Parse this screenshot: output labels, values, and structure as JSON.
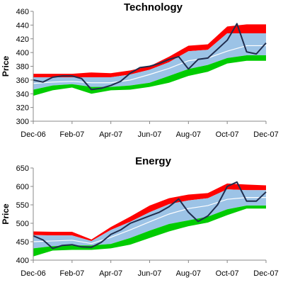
{
  "chart_data": [
    {
      "type": "area",
      "title": "Technology",
      "xlabel": "",
      "ylabel": "Price",
      "ylim": [
        300,
        460
      ],
      "yticks": [
        300,
        320,
        340,
        360,
        380,
        400,
        420,
        440,
        460
      ],
      "xlim": [
        "Dec-06",
        "Dec-07"
      ],
      "xticks": [
        "Dec-06",
        "Feb-07",
        "Apr-07",
        "Jun-07",
        "Aug-07",
        "Oct-07",
        "Dec-07"
      ],
      "grid": false,
      "legend": "none",
      "colors": {
        "upper": "#ff0000",
        "band": "#9cc3e6",
        "lower": "#00cc00",
        "mid": "#ffffff",
        "price": "#1f2d4e"
      },
      "bands": {
        "x": [
          "Dec-06",
          "Jan-07",
          "Feb-07",
          "Mar-07",
          "Apr-07",
          "May-07",
          "Jun-07",
          "Jul-07",
          "Aug-07",
          "Sep-07",
          "Oct-07",
          "Nov-07",
          "Dec-07"
        ],
        "red_top": [
          369,
          369,
          369,
          371,
          370,
          374,
          380,
          394,
          410,
          412,
          438,
          441,
          441
        ],
        "red_bot": [
          364,
          364,
          364,
          364,
          364,
          368,
          375,
          386,
          402,
          404,
          428,
          428,
          428
        ],
        "mid": [
          355,
          357,
          358,
          356,
          356,
          360,
          368,
          377,
          388,
          392,
          402,
          410,
          410
        ],
        "blue_bot": [
          346,
          352,
          354,
          350,
          350,
          352,
          356,
          366,
          376,
          382,
          392,
          396,
          396
        ],
        "green_bot": [
          337,
          345,
          349,
          340,
          345,
          346,
          350,
          356,
          366,
          372,
          384,
          388,
          388
        ]
      },
      "series": [
        {
          "x": [
            "Dec-06",
            "Dec-06",
            "Jan-07",
            "Jan-07",
            "Feb-07",
            "Feb-07",
            "Mar-07",
            "Mar-07",
            "Apr-07",
            "Apr-07",
            "May-07",
            "May-07",
            "Jun-07",
            "Jun-07",
            "Jul-07",
            "Jul-07",
            "Aug-07",
            "Aug-07",
            "Sep-07",
            "Sep-07",
            "Oct-07",
            "Oct-07",
            "Nov-07",
            "Nov-07",
            "Dec-07"
          ],
          "values": [
            360,
            357,
            364,
            366,
            366,
            362,
            346,
            348,
            352,
            358,
            370,
            378,
            380,
            384,
            390,
            394,
            376,
            390,
            392,
            405,
            418,
            442,
            401,
            398,
            414
          ]
        }
      ]
    },
    {
      "type": "area",
      "title": "Energy",
      "xlabel": "",
      "ylabel": "Price",
      "ylim": [
        400,
        650
      ],
      "yticks": [
        400,
        450,
        500,
        550,
        600,
        650
      ],
      "xlim": [
        "Dec-06",
        "Dec-07"
      ],
      "xticks": [
        "Dec-06",
        "Feb-07",
        "Apr-07",
        "Jun-07",
        "Aug-07",
        "Oct-07",
        "Dec-07"
      ],
      "grid": false,
      "legend": "none",
      "colors": {
        "upper": "#ff0000",
        "band": "#9cc3e6",
        "lower": "#00cc00",
        "mid": "#ffffff",
        "price": "#1f2d4e"
      },
      "bands": {
        "x": [
          "Dec-06",
          "Jan-07",
          "Feb-07",
          "Mar-07",
          "Apr-07",
          "May-07",
          "Jun-07",
          "Jul-07",
          "Aug-07",
          "Sep-07",
          "Oct-07",
          "Nov-07",
          "Dec-07"
        ],
        "red_top": [
          478,
          477,
          477,
          456,
          490,
          518,
          548,
          568,
          578,
          582,
          608,
          605,
          603
        ],
        "red_bot": [
          468,
          467,
          467,
          452,
          482,
          504,
          530,
          552,
          562,
          568,
          592,
          590,
          590
        ],
        "mid": [
          450,
          452,
          454,
          445,
          462,
          482,
          504,
          525,
          540,
          548,
          565,
          570,
          570
        ],
        "blue_bot": [
          432,
          438,
          440,
          440,
          444,
          460,
          480,
          498,
          508,
          518,
          538,
          548,
          548
        ],
        "green_bot": [
          410,
          426,
          428,
          428,
          432,
          442,
          460,
          478,
          492,
          502,
          522,
          540,
          540
        ]
      },
      "series": [
        {
          "x": [
            "Dec-06",
            "Dec-06",
            "Jan-07",
            "Jan-07",
            "Feb-07",
            "Feb-07",
            "Mar-07",
            "Mar-07",
            "Apr-07",
            "Apr-07",
            "May-07",
            "May-07",
            "Jun-07",
            "Jun-07",
            "Jul-07",
            "Jul-07",
            "Aug-07",
            "Aug-07",
            "Sep-07",
            "Sep-07",
            "Oct-07",
            "Oct-07",
            "Nov-07",
            "Nov-07",
            "Dec-07"
          ],
          "values": [
            466,
            455,
            432,
            440,
            442,
            436,
            435,
            448,
            470,
            482,
            500,
            510,
            520,
            530,
            545,
            566,
            530,
            505,
            520,
            550,
            600,
            612,
            560,
            560,
            585
          ]
        }
      ]
    }
  ]
}
